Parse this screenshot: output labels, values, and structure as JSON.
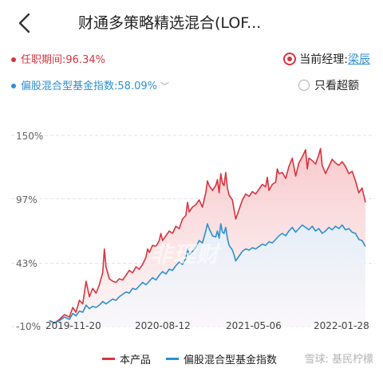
{
  "header": {
    "title": "财通多策略精选混合(LOF..."
  },
  "stats": {
    "tenure_label": "任职期间:",
    "tenure_value": "96.34%",
    "index_label": "偏股混合型基金指数:",
    "index_value": "58.09%"
  },
  "manager": {
    "label": "当前经理:",
    "name": "梁辰"
  },
  "toggle": {
    "label": "只看超额"
  },
  "chart_data": {
    "type": "area",
    "y_ticks": [
      "150%",
      "97%",
      "43%",
      "-10%"
    ],
    "x_ticks": [
      "2019-11-20",
      "2020-08-12",
      "2021-05-06",
      "2022-01-28"
    ],
    "ylim": [
      -10,
      150
    ],
    "series": [
      {
        "name": "本产品",
        "color": "#d9343f",
        "points": [
          [
            0,
            -5
          ],
          [
            3,
            -7
          ],
          [
            6,
            -4
          ],
          [
            9,
            0
          ],
          [
            12,
            -2
          ],
          [
            14,
            6
          ],
          [
            16,
            2
          ],
          [
            18,
            12
          ],
          [
            20,
            9
          ],
          [
            22,
            28
          ],
          [
            24,
            15
          ],
          [
            26,
            22
          ],
          [
            28,
            18
          ],
          [
            30,
            25
          ],
          [
            32,
            35
          ],
          [
            33,
            55
          ],
          [
            34,
            40
          ],
          [
            36,
            30
          ],
          [
            38,
            28
          ],
          [
            40,
            27
          ],
          [
            42,
            30
          ],
          [
            44,
            29
          ],
          [
            46,
            33
          ],
          [
            48,
            37
          ],
          [
            50,
            35
          ],
          [
            52,
            40
          ],
          [
            54,
            38
          ],
          [
            56,
            42
          ],
          [
            58,
            48
          ],
          [
            59,
            55
          ],
          [
            60,
            52
          ],
          [
            62,
            58
          ],
          [
            64,
            57
          ],
          [
            66,
            62
          ],
          [
            67,
            68
          ],
          [
            68,
            62
          ],
          [
            70,
            66
          ],
          [
            72,
            70
          ],
          [
            74,
            68
          ],
          [
            76,
            74
          ],
          [
            78,
            72
          ],
          [
            80,
            80
          ],
          [
            82,
            83
          ],
          [
            83,
            94
          ],
          [
            84,
            86
          ],
          [
            86,
            90
          ],
          [
            88,
            92
          ],
          [
            90,
            96
          ],
          [
            92,
            90
          ],
          [
            94,
            102
          ],
          [
            95,
            112
          ],
          [
            96,
            108
          ],
          [
            98,
            104
          ],
          [
            100,
            108
          ],
          [
            101,
            113
          ],
          [
            102,
            102
          ],
          [
            103,
            118
          ],
          [
            104,
            110
          ],
          [
            105,
            108
          ],
          [
            106,
            119
          ],
          [
            107,
            106
          ],
          [
            108,
            100
          ],
          [
            110,
            96
          ],
          [
            111,
            88
          ],
          [
            112,
            80
          ],
          [
            114,
            88
          ],
          [
            116,
            96
          ],
          [
            118,
            101
          ],
          [
            120,
            99
          ],
          [
            122,
            103
          ],
          [
            124,
            101
          ],
          [
            126,
            105
          ],
          [
            128,
            109
          ],
          [
            130,
            107
          ],
          [
            131,
            115
          ],
          [
            132,
            104
          ],
          [
            134,
            109
          ],
          [
            136,
            111
          ],
          [
            137,
            122
          ],
          [
            138,
            118
          ],
          [
            140,
            119
          ],
          [
            142,
            114
          ],
          [
            144,
            124
          ],
          [
            146,
            131
          ],
          [
            148,
            116
          ],
          [
            150,
            127
          ],
          [
            152,
            132
          ],
          [
            154,
            138
          ],
          [
            155,
            122
          ],
          [
            156,
            131
          ],
          [
            158,
            129
          ],
          [
            160,
            126
          ],
          [
            162,
            134
          ],
          [
            163,
            139
          ],
          [
            164,
            125
          ],
          [
            166,
            118
          ],
          [
            168,
            124
          ],
          [
            170,
            130
          ],
          [
            172,
            127
          ],
          [
            174,
            125
          ],
          [
            176,
            128
          ],
          [
            178,
            124
          ],
          [
            180,
            118
          ],
          [
            182,
            120
          ],
          [
            184,
            112
          ],
          [
            186,
            102
          ],
          [
            188,
            106
          ],
          [
            190,
            94
          ]
        ]
      },
      {
        "name": "偏股混合型基金指数",
        "color": "#2d8fd0",
        "points": [
          [
            0,
            -5
          ],
          [
            3,
            -7
          ],
          [
            6,
            -5
          ],
          [
            9,
            -2
          ],
          [
            12,
            -4
          ],
          [
            14,
            1
          ],
          [
            16,
            -1
          ],
          [
            18,
            3
          ],
          [
            20,
            2
          ],
          [
            22,
            8
          ],
          [
            24,
            5
          ],
          [
            26,
            7
          ],
          [
            28,
            6
          ],
          [
            30,
            8
          ],
          [
            32,
            11
          ],
          [
            34,
            9
          ],
          [
            36,
            11
          ],
          [
            38,
            13
          ],
          [
            40,
            12
          ],
          [
            42,
            15
          ],
          [
            44,
            17
          ],
          [
            46,
            19
          ],
          [
            48,
            18
          ],
          [
            50,
            22
          ],
          [
            52,
            21
          ],
          [
            54,
            24
          ],
          [
            56,
            27
          ],
          [
            58,
            25
          ],
          [
            60,
            28
          ],
          [
            62,
            31
          ],
          [
            64,
            29
          ],
          [
            66,
            33
          ],
          [
            68,
            36
          ],
          [
            70,
            34
          ],
          [
            72,
            38
          ],
          [
            74,
            37
          ],
          [
            76,
            41
          ],
          [
            78,
            44
          ],
          [
            80,
            42
          ],
          [
            82,
            47
          ],
          [
            83,
            55
          ],
          [
            84,
            50
          ],
          [
            86,
            53
          ],
          [
            88,
            56
          ],
          [
            90,
            62
          ],
          [
            92,
            60
          ],
          [
            94,
            70
          ],
          [
            95,
            76
          ],
          [
            96,
            72
          ],
          [
            98,
            66
          ],
          [
            100,
            65
          ],
          [
            101,
            70
          ],
          [
            102,
            64
          ],
          [
            103,
            76
          ],
          [
            104,
            69
          ],
          [
            105,
            68
          ],
          [
            106,
            73
          ],
          [
            107,
            64
          ],
          [
            108,
            58
          ],
          [
            110,
            54
          ],
          [
            111,
            50
          ],
          [
            112,
            45
          ],
          [
            114,
            49
          ],
          [
            116,
            53
          ],
          [
            118,
            55
          ],
          [
            120,
            54
          ],
          [
            122,
            56
          ],
          [
            124,
            55
          ],
          [
            126,
            57
          ],
          [
            128,
            59
          ],
          [
            130,
            58
          ],
          [
            132,
            61
          ],
          [
            134,
            60
          ],
          [
            136,
            63
          ],
          [
            138,
            66
          ],
          [
            140,
            68
          ],
          [
            142,
            66
          ],
          [
            144,
            70
          ],
          [
            146,
            73
          ],
          [
            148,
            69
          ],
          [
            150,
            72
          ],
          [
            152,
            75
          ],
          [
            154,
            73
          ],
          [
            156,
            71
          ],
          [
            158,
            74
          ],
          [
            160,
            70
          ],
          [
            162,
            72
          ],
          [
            164,
            68
          ],
          [
            166,
            70
          ],
          [
            168,
            73
          ],
          [
            170,
            71
          ],
          [
            172,
            74
          ],
          [
            174,
            72
          ],
          [
            176,
            75
          ],
          [
            178,
            71
          ],
          [
            180,
            72
          ],
          [
            182,
            69
          ],
          [
            184,
            68
          ],
          [
            186,
            63
          ],
          [
            188,
            62
          ],
          [
            190,
            57
          ]
        ]
      }
    ]
  },
  "watermarks": {
    "chart_mark": "非理财",
    "footer": "雪球: 基民柠檬"
  }
}
